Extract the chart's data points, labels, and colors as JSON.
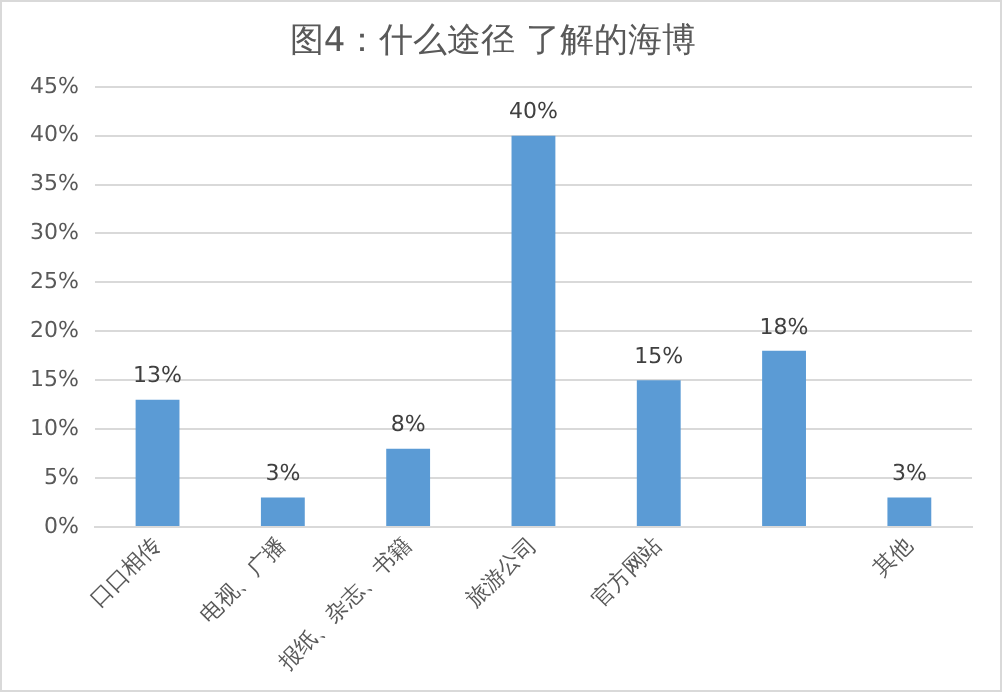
{
  "chart_data": {
    "type": "bar",
    "title": "图4：什么途径 了解的海博",
    "categories": [
      "口口相传",
      "电视、广播",
      "报纸、杂志、书籍",
      "旅游公司",
      "官方网站",
      null,
      "其他"
    ],
    "values": [
      13,
      3,
      8,
      40,
      15,
      18,
      3
    ],
    "value_labels": [
      "13%",
      "3%",
      "8%",
      "40%",
      "15%",
      "18%",
      "3%"
    ],
    "color": "#5b9bd5",
    "ylim": [
      0,
      45
    ],
    "yticks": [
      {
        "value": 0,
        "label": "0%"
      },
      {
        "value": 5,
        "label": "5%"
      },
      {
        "value": 10,
        "label": "10%"
      },
      {
        "value": 15,
        "label": "15%"
      },
      {
        "value": 20,
        "label": "20%"
      },
      {
        "value": 25,
        "label": "25%"
      },
      {
        "value": 30,
        "label": "30%"
      },
      {
        "value": 35,
        "label": "35%"
      },
      {
        "value": 40,
        "label": "40%"
      },
      {
        "value": 45,
        "label": "45%"
      }
    ],
    "grid": "y"
  }
}
